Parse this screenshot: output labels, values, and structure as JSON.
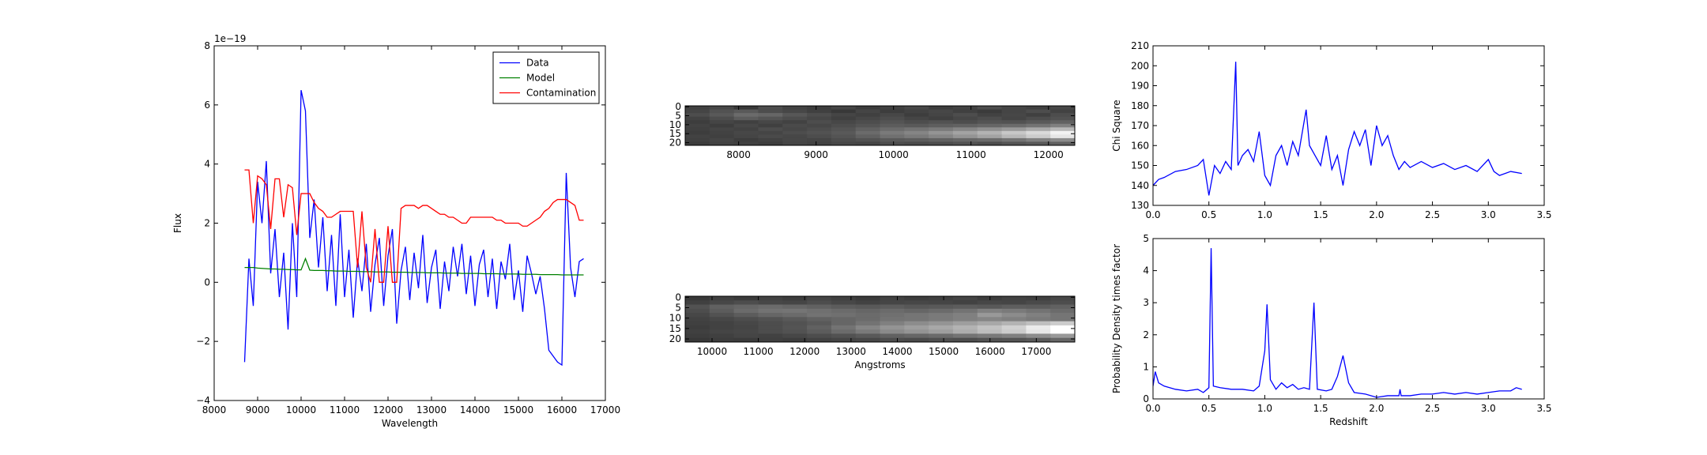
{
  "chart_data": [
    {
      "type": "line",
      "xlabel": "Wavelength",
      "ylabel": "Flux",
      "offset_text": "1e−19",
      "xlim": [
        8000,
        17000
      ],
      "xticks": [
        8000,
        9000,
        10000,
        11000,
        12000,
        13000,
        14000,
        15000,
        16000,
        17000
      ],
      "ylim": [
        -4,
        8
      ],
      "yticks": [
        {
          "value": -4,
          "label": "−4"
        },
        {
          "value": -2,
          "label": "−2"
        },
        0,
        2,
        4,
        6,
        8
      ],
      "legend": "upper right",
      "x": [
        8700,
        8800,
        8900,
        9000,
        9100,
        9200,
        9300,
        9400,
        9500,
        9600,
        9700,
        9800,
        9900,
        10000,
        10100,
        10200,
        10300,
        10400,
        10500,
        10600,
        10700,
        10800,
        10900,
        11000,
        11100,
        11200,
        11300,
        11400,
        11500,
        11600,
        11700,
        11800,
        11900,
        12000,
        12100,
        12200,
        12300,
        12400,
        12500,
        12600,
        12700,
        12800,
        12900,
        13000,
        13100,
        13200,
        13300,
        13400,
        13500,
        13600,
        13700,
        13800,
        13900,
        14000,
        14100,
        14200,
        14300,
        14400,
        14500,
        14600,
        14700,
        14800,
        14900,
        15000,
        15100,
        15200,
        15300,
        15400,
        15500,
        15600,
        15700,
        15800,
        15900,
        16000,
        16100,
        16200,
        16300,
        16400,
        16500
      ],
      "series": [
        {
          "name": "Data",
          "color": "#0000ff",
          "values": [
            -2.7,
            0.8,
            -0.8,
            3.4,
            2.0,
            4.1,
            0.3,
            1.8,
            -0.5,
            1.0,
            -1.6,
            2.0,
            -0.5,
            6.5,
            5.8,
            1.5,
            2.8,
            0.5,
            2.2,
            -0.3,
            1.6,
            -0.8,
            2.3,
            -0.5,
            1.1,
            -1.2,
            0.8,
            -0.3,
            1.3,
            -1.0,
            0.6,
            1.5,
            -0.8,
            0.9,
            1.8,
            -1.4,
            0.4,
            1.2,
            -0.6,
            1.0,
            -0.2,
            1.6,
            -0.7,
            0.5,
            1.1,
            -0.9,
            0.7,
            -0.3,
            1.2,
            0.2,
            1.3,
            -0.4,
            0.9,
            -0.8,
            0.6,
            1.1,
            -0.5,
            0.8,
            -0.9,
            0.7,
            0.1,
            1.3,
            -0.6,
            0.4,
            -1.0,
            0.9,
            0.3,
            -0.4,
            0.2,
            -0.9,
            -2.3,
            -2.5,
            -2.7,
            -2.8,
            3.7,
            0.5,
            -0.5,
            0.7,
            0.8
          ]
        },
        {
          "name": "Model",
          "color": "#008000",
          "values": [
            0.5,
            0.5,
            0.5,
            0.48,
            0.47,
            0.46,
            0.45,
            0.45,
            0.44,
            0.44,
            0.43,
            0.43,
            0.42,
            0.42,
            0.8,
            0.41,
            0.4,
            0.4,
            0.4,
            0.39,
            0.39,
            0.38,
            0.38,
            0.38,
            0.37,
            0.37,
            0.37,
            0.36,
            0.36,
            0.36,
            0.35,
            0.35,
            0.35,
            0.35,
            0.34,
            0.34,
            0.34,
            0.34,
            0.33,
            0.33,
            0.33,
            0.33,
            0.32,
            0.32,
            0.32,
            0.32,
            0.31,
            0.31,
            0.31,
            0.31,
            0.3,
            0.3,
            0.3,
            0.3,
            0.3,
            0.29,
            0.29,
            0.29,
            0.29,
            0.28,
            0.28,
            0.28,
            0.28,
            0.28,
            0.27,
            0.27,
            0.27,
            0.27,
            0.26,
            0.26,
            0.26,
            0.26,
            0.26,
            0.25,
            0.25,
            0.25,
            0.25,
            0.25,
            0.25
          ]
        },
        {
          "name": "Contamination",
          "color": "#ff0000",
          "values": [
            3.8,
            3.8,
            2.0,
            3.6,
            3.5,
            3.3,
            1.8,
            3.5,
            3.5,
            2.2,
            3.3,
            3.2,
            1.6,
            3.0,
            3.0,
            3.0,
            2.7,
            2.5,
            2.4,
            2.2,
            2.2,
            2.3,
            2.4,
            2.4,
            2.4,
            2.4,
            0.5,
            2.4,
            0.5,
            0.0,
            1.8,
            0.0,
            0.0,
            1.9,
            0.0,
            0.0,
            2.5,
            2.6,
            2.6,
            2.6,
            2.5,
            2.6,
            2.6,
            2.5,
            2.4,
            2.3,
            2.3,
            2.2,
            2.2,
            2.1,
            2.0,
            2.0,
            2.2,
            2.2,
            2.2,
            2.2,
            2.2,
            2.2,
            2.1,
            2.1,
            2.0,
            2.0,
            2.0,
            2.0,
            1.9,
            1.9,
            2.0,
            2.1,
            2.2,
            2.4,
            2.5,
            2.7,
            2.8,
            2.8,
            2.8,
            2.7,
            2.6,
            2.1,
            2.1
          ]
        }
      ]
    },
    {
      "type": "heatmap",
      "colormap": "gray",
      "zlim": [
        0,
        1
      ],
      "xlim": [
        7310,
        12340
      ],
      "xticks": [
        8000,
        9000,
        10000,
        11000,
        12000
      ],
      "ylim": [
        21.5,
        -0.5
      ],
      "yticks": [
        0,
        5,
        10,
        15,
        20
      ],
      "z": [
        [
          0.25,
          0.28,
          0.22,
          0.3,
          0.26,
          0.24,
          0.27,
          0.23,
          0.25,
          0.28,
          0.24,
          0.26,
          0.3,
          0.27,
          0.25,
          0.28
        ],
        [
          0.27,
          0.32,
          0.35,
          0.3,
          0.28,
          0.25,
          0.22,
          0.27,
          0.24,
          0.26,
          0.28,
          0.25,
          0.23,
          0.27,
          0.3,
          0.26
        ],
        [
          0.3,
          0.35,
          0.42,
          0.4,
          0.34,
          0.3,
          0.27,
          0.25,
          0.28,
          0.24,
          0.27,
          0.3,
          0.26,
          0.28,
          0.25,
          0.3
        ],
        [
          0.26,
          0.3,
          0.36,
          0.33,
          0.3,
          0.28,
          0.25,
          0.28,
          0.3,
          0.27,
          0.25,
          0.28,
          0.3,
          0.27,
          0.3,
          0.32
        ],
        [
          0.24,
          0.27,
          0.25,
          0.28,
          0.26,
          0.3,
          0.28,
          0.3,
          0.33,
          0.3,
          0.32,
          0.3,
          0.33,
          0.32,
          0.35,
          0.38
        ],
        [
          0.26,
          0.24,
          0.28,
          0.25,
          0.29,
          0.28,
          0.3,
          0.33,
          0.36,
          0.35,
          0.37,
          0.38,
          0.4,
          0.42,
          0.45,
          0.5
        ],
        [
          0.25,
          0.27,
          0.26,
          0.3,
          0.28,
          0.3,
          0.33,
          0.38,
          0.42,
          0.45,
          0.48,
          0.52,
          0.56,
          0.6,
          0.66,
          0.72
        ],
        [
          0.24,
          0.26,
          0.28,
          0.27,
          0.3,
          0.32,
          0.35,
          0.42,
          0.48,
          0.52,
          0.58,
          0.64,
          0.7,
          0.78,
          0.85,
          0.95
        ],
        [
          0.26,
          0.25,
          0.27,
          0.29,
          0.28,
          0.3,
          0.33,
          0.38,
          0.44,
          0.48,
          0.52,
          0.58,
          0.64,
          0.72,
          0.8,
          0.9
        ],
        [
          0.25,
          0.27,
          0.24,
          0.26,
          0.28,
          0.27,
          0.3,
          0.32,
          0.35,
          0.36,
          0.38,
          0.4,
          0.42,
          0.45,
          0.5,
          0.55
        ],
        [
          0.23,
          0.26,
          0.25,
          0.24,
          0.27,
          0.26,
          0.28,
          0.27,
          0.3,
          0.29,
          0.3,
          0.32,
          0.3,
          0.33,
          0.35,
          0.38
        ]
      ]
    },
    {
      "type": "heatmap",
      "colormap": "gray",
      "zlim": [
        0,
        1
      ],
      "xlabel": "Angstroms",
      "xlim": [
        9420,
        17830
      ],
      "xticks": [
        10000,
        11000,
        12000,
        13000,
        14000,
        15000,
        16000,
        17000
      ],
      "ylim": [
        21.5,
        -0.5
      ],
      "yticks": [
        0,
        5,
        10,
        15,
        20
      ],
      "z": [
        [
          0.22,
          0.25,
          0.23,
          0.26,
          0.24,
          0.27,
          0.25,
          0.23,
          0.26,
          0.24,
          0.25,
          0.27,
          0.24,
          0.26,
          0.25,
          0.28
        ],
        [
          0.25,
          0.28,
          0.3,
          0.28,
          0.27,
          0.3,
          0.28,
          0.26,
          0.27,
          0.28,
          0.27,
          0.26,
          0.28,
          0.27,
          0.29,
          0.3
        ],
        [
          0.32,
          0.38,
          0.4,
          0.42,
          0.4,
          0.38,
          0.36,
          0.35,
          0.36,
          0.34,
          0.35,
          0.36,
          0.35,
          0.37,
          0.36,
          0.38
        ],
        [
          0.3,
          0.36,
          0.42,
          0.45,
          0.46,
          0.44,
          0.42,
          0.4,
          0.42,
          0.4,
          0.42,
          0.45,
          0.5,
          0.48,
          0.45,
          0.42
        ],
        [
          0.28,
          0.32,
          0.36,
          0.4,
          0.42,
          0.45,
          0.44,
          0.42,
          0.44,
          0.46,
          0.48,
          0.5,
          0.6,
          0.55,
          0.5,
          0.46
        ],
        [
          0.26,
          0.28,
          0.3,
          0.32,
          0.35,
          0.38,
          0.4,
          0.42,
          0.45,
          0.46,
          0.48,
          0.5,
          0.52,
          0.5,
          0.48,
          0.46
        ],
        [
          0.25,
          0.26,
          0.28,
          0.3,
          0.32,
          0.35,
          0.4,
          0.45,
          0.5,
          0.55,
          0.58,
          0.62,
          0.66,
          0.7,
          0.75,
          0.8
        ],
        [
          0.24,
          0.26,
          0.27,
          0.3,
          0.33,
          0.38,
          0.45,
          0.52,
          0.58,
          0.62,
          0.66,
          0.7,
          0.76,
          0.82,
          0.92,
          1.0
        ],
        [
          0.25,
          0.27,
          0.28,
          0.3,
          0.32,
          0.36,
          0.42,
          0.48,
          0.54,
          0.58,
          0.62,
          0.68,
          0.74,
          0.8,
          0.9,
          1.0
        ],
        [
          0.24,
          0.25,
          0.27,
          0.26,
          0.28,
          0.3,
          0.32,
          0.35,
          0.38,
          0.4,
          0.42,
          0.45,
          0.48,
          0.5,
          0.55,
          0.6
        ],
        [
          0.22,
          0.24,
          0.23,
          0.25,
          0.24,
          0.26,
          0.27,
          0.28,
          0.3,
          0.29,
          0.31,
          0.3,
          0.32,
          0.33,
          0.35,
          0.4
        ]
      ]
    },
    {
      "type": "line",
      "ylabel": "Chi Square",
      "xlim": [
        0,
        3.5
      ],
      "xticks": [
        {
          "value": 0,
          "label": "0.0"
        },
        0.5,
        {
          "value": 1,
          "label": "1.0"
        },
        1.5,
        {
          "value": 2,
          "label": "2.0"
        },
        2.5,
        {
          "value": 3,
          "label": "3.0"
        },
        3.5
      ],
      "ylim": [
        130,
        210
      ],
      "yticks": [
        130,
        140,
        150,
        160,
        170,
        180,
        190,
        200,
        210
      ],
      "x": [
        0,
        0.05,
        0.1,
        0.2,
        0.3,
        0.4,
        0.45,
        0.5,
        0.55,
        0.6,
        0.65,
        0.7,
        0.74,
        0.76,
        0.8,
        0.85,
        0.9,
        0.95,
        1.0,
        1.05,
        1.1,
        1.15,
        1.2,
        1.25,
        1.3,
        1.37,
        1.4,
        1.45,
        1.5,
        1.55,
        1.6,
        1.65,
        1.7,
        1.75,
        1.8,
        1.85,
        1.9,
        1.95,
        2.0,
        2.05,
        2.1,
        2.15,
        2.2,
        2.25,
        2.3,
        2.4,
        2.5,
        2.6,
        2.7,
        2.8,
        2.9,
        3.0,
        3.05,
        3.1,
        3.2,
        3.3
      ],
      "series": [
        {
          "color": "#0000ff",
          "values": [
            140,
            143,
            144,
            147,
            148,
            150,
            153,
            135,
            150,
            146,
            152,
            148,
            202,
            150,
            155,
            158,
            152,
            167,
            145,
            140,
            155,
            160,
            150,
            162,
            155,
            178,
            160,
            155,
            150,
            165,
            148,
            155,
            140,
            158,
            167,
            160,
            168,
            150,
            170,
            160,
            165,
            155,
            148,
            152,
            149,
            152,
            149,
            151,
            148,
            150,
            147,
            153,
            147,
            145,
            147,
            146
          ]
        }
      ]
    },
    {
      "type": "line",
      "xlabel": "Redshift",
      "ylabel": "Probability Density times factor",
      "xlim": [
        0,
        3.5
      ],
      "xticks": [
        {
          "value": 0,
          "label": "0.0"
        },
        0.5,
        {
          "value": 1,
          "label": "1.0"
        },
        1.5,
        {
          "value": 2,
          "label": "2.0"
        },
        2.5,
        {
          "value": 3,
          "label": "3.0"
        },
        3.5
      ],
      "ylim": [
        0,
        5
      ],
      "yticks": [
        0,
        1,
        2,
        3,
        4,
        5
      ],
      "x": [
        0,
        0.02,
        0.05,
        0.1,
        0.2,
        0.3,
        0.4,
        0.45,
        0.5,
        0.52,
        0.54,
        0.6,
        0.7,
        0.8,
        0.9,
        0.95,
        1.0,
        1.02,
        1.05,
        1.1,
        1.15,
        1.2,
        1.25,
        1.3,
        1.35,
        1.4,
        1.44,
        1.47,
        1.55,
        1.6,
        1.65,
        1.7,
        1.75,
        1.8,
        1.9,
        2.0,
        2.1,
        2.2,
        2.21,
        2.22,
        2.3,
        2.4,
        2.5,
        2.6,
        2.7,
        2.8,
        2.9,
        3.0,
        3.1,
        3.2,
        3.25,
        3.3
      ],
      "series": [
        {
          "color": "#0000ff",
          "values": [
            0.4,
            0.85,
            0.5,
            0.4,
            0.3,
            0.25,
            0.3,
            0.2,
            0.35,
            4.7,
            0.4,
            0.35,
            0.3,
            0.3,
            0.25,
            0.4,
            1.5,
            2.95,
            0.6,
            0.3,
            0.5,
            0.35,
            0.45,
            0.3,
            0.35,
            0.3,
            3.0,
            0.3,
            0.25,
            0.3,
            0.7,
            1.35,
            0.5,
            0.2,
            0.15,
            0.05,
            0.1,
            0.1,
            0.3,
            0.1,
            0.1,
            0.15,
            0.15,
            0.2,
            0.15,
            0.2,
            0.15,
            0.2,
            0.25,
            0.25,
            0.35,
            0.3
          ]
        }
      ]
    }
  ]
}
